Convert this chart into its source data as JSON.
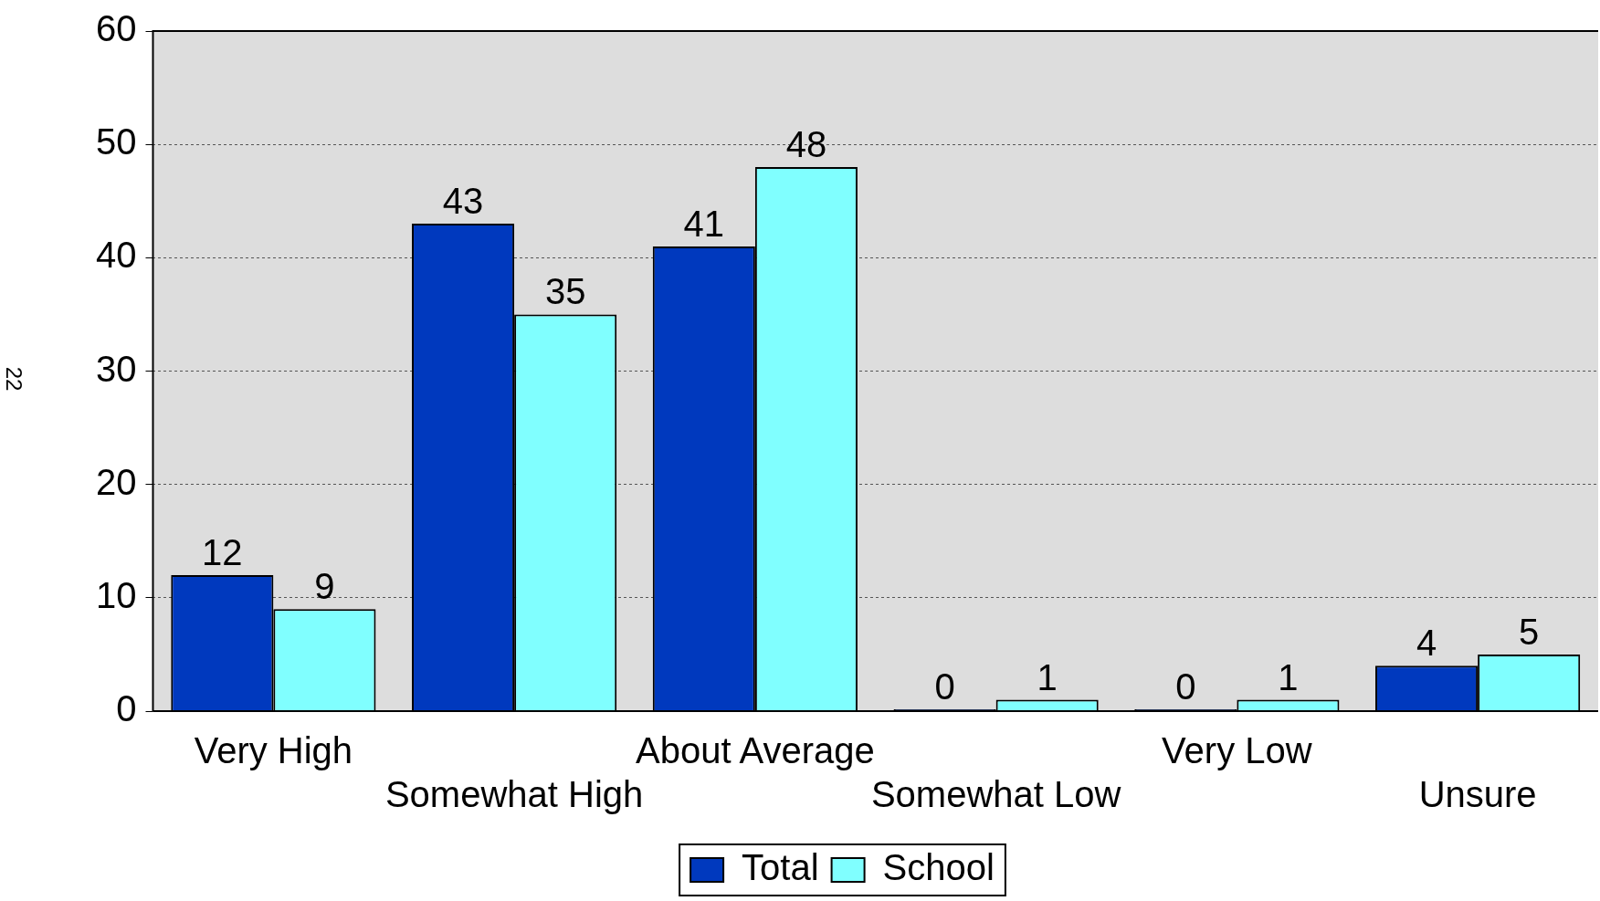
{
  "chart_data": {
    "type": "bar",
    "categories": [
      "Very High",
      "Somewhat High",
      "About Average",
      "Somewhat Low",
      "Very Low",
      "Unsure"
    ],
    "series": [
      {
        "name": "Total",
        "color": "#0039be",
        "values": [
          12,
          43,
          41,
          0,
          0,
          4
        ]
      },
      {
        "name": "School",
        "color": "#80ffff",
        "values": [
          9,
          35,
          48,
          1,
          1,
          5
        ]
      }
    ],
    "ylim": [
      0,
      60
    ],
    "yticks": [
      0,
      10,
      20,
      30,
      40,
      50,
      60
    ],
    "grid": "y",
    "legend": "bottom",
    "data_labels": true,
    "annotations": [
      "22"
    ]
  }
}
